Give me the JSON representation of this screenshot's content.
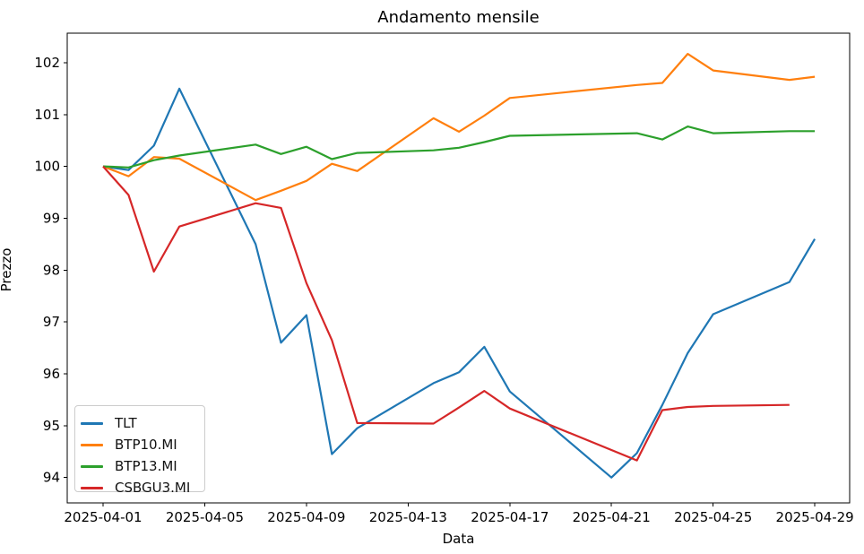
{
  "figure": {
    "title": "Andamento mensile",
    "xlabel": "Data",
    "ylabel": "Prezzo"
  },
  "legend": {
    "items": [
      "TLT",
      "BTP10.MI",
      "BTP13.MI",
      "CSBGU3.MI"
    ]
  },
  "chart_data": {
    "type": "line",
    "title": "Andamento mensile",
    "xlabel": "Data",
    "ylabel": "Prezzo",
    "grid": false,
    "legend_position": "lower left",
    "x_axis": {
      "unit": "date, day of 2025-04",
      "tick_days": [
        1,
        5,
        9,
        13,
        17,
        21,
        25,
        29
      ],
      "tick_labels": [
        "2025-04-01",
        "2025-04-05",
        "2025-04-09",
        "2025-04-13",
        "2025-04-17",
        "2025-04-21",
        "2025-04-25",
        "2025-04-29"
      ],
      "range_days": [
        -0.41,
        30.37
      ]
    },
    "y_axis": {
      "ticks": [
        94,
        95,
        96,
        97,
        98,
        99,
        100,
        101,
        102
      ],
      "range": [
        93.51,
        102.57
      ]
    },
    "series": [
      {
        "name": "TLT",
        "color": "#1f77b4",
        "days": [
          1,
          2,
          3,
          4,
          7,
          8,
          9,
          10,
          11,
          14,
          15,
          16,
          17,
          21,
          22,
          23,
          24,
          25,
          28,
          29
        ],
        "values": [
          100.0,
          99.93,
          100.4,
          101.5,
          98.5,
          96.6,
          97.13,
          94.45,
          94.95,
          95.82,
          96.03,
          96.52,
          95.66,
          94.0,
          94.47,
          95.4,
          96.4,
          97.15,
          97.77,
          98.6
        ]
      },
      {
        "name": "BTP10.MI",
        "color": "#ff7f0e",
        "days": [
          1,
          2,
          3,
          4,
          7,
          8,
          9,
          10,
          11,
          14,
          15,
          16,
          17,
          22,
          23,
          24,
          25,
          28,
          29
        ],
        "values": [
          100.0,
          99.81,
          100.18,
          100.15,
          99.35,
          99.53,
          99.72,
          100.05,
          99.91,
          100.93,
          100.67,
          100.98,
          101.32,
          101.57,
          101.61,
          102.17,
          101.85,
          101.67,
          101.73
        ]
      },
      {
        "name": "BTP13.MI",
        "color": "#2ca02c",
        "days": [
          1,
          2,
          3,
          4,
          7,
          8,
          9,
          10,
          11,
          14,
          15,
          16,
          17,
          22,
          23,
          24,
          25,
          28,
          29
        ],
        "values": [
          100.0,
          99.98,
          100.12,
          100.21,
          100.42,
          100.24,
          100.38,
          100.14,
          100.26,
          100.31,
          100.36,
          100.47,
          100.59,
          100.64,
          100.52,
          100.77,
          100.64,
          100.68,
          100.68
        ]
      },
      {
        "name": "CSBGU3.MI",
        "color": "#d62728",
        "days": [
          1,
          2,
          3,
          4,
          7,
          8,
          9,
          10,
          11,
          14,
          15,
          16,
          17,
          22,
          23,
          24,
          25,
          28
        ],
        "values": [
          100.0,
          99.45,
          97.97,
          98.84,
          99.29,
          99.2,
          97.75,
          96.65,
          95.05,
          95.04,
          95.35,
          95.67,
          95.33,
          94.33,
          95.3,
          95.36,
          95.38,
          95.4
        ]
      }
    ]
  }
}
